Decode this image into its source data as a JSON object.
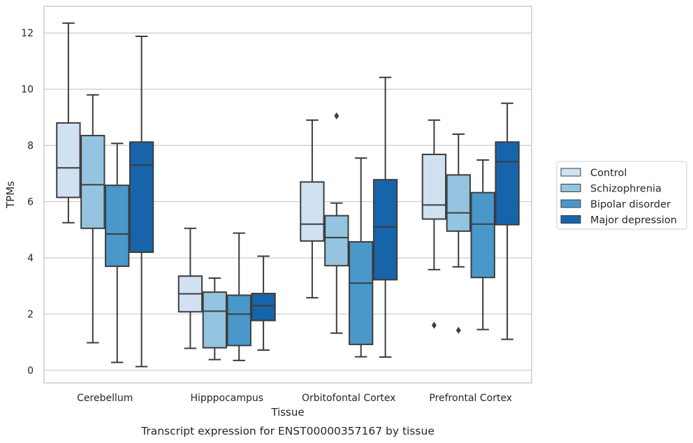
{
  "chart_data": {
    "type": "box",
    "caption": "Transcript expression for ENST00000357167 by tissue",
    "xlabel": "Tissue",
    "ylabel": "TPMs",
    "ylim": [
      -0.45,
      12.95
    ],
    "yticks": [
      0,
      2,
      4,
      6,
      8,
      10,
      12
    ],
    "grid": true,
    "legend": {
      "placement": "right",
      "entries": [
        "Control",
        "Schizophrenia",
        "Bipolar disorder",
        "Major depression"
      ]
    },
    "categories": [
      "Cerebellum",
      "Hipppocampus",
      "Orbitofontal Cortex",
      "Prefrontal Cortex"
    ],
    "series": [
      {
        "name": "Control",
        "color": "#d0e1f2",
        "boxes": [
          {
            "whislo": 5.25,
            "q1": 6.15,
            "med": 7.2,
            "q3": 8.8,
            "whishi": 12.35,
            "fliers": []
          },
          {
            "whislo": 0.78,
            "q1": 2.08,
            "med": 2.72,
            "q3": 3.35,
            "whishi": 5.05,
            "fliers": []
          },
          {
            "whislo": 2.58,
            "q1": 4.6,
            "med": 5.2,
            "q3": 6.7,
            "whishi": 8.9,
            "fliers": []
          },
          {
            "whislo": 3.58,
            "q1": 5.38,
            "med": 5.88,
            "q3": 7.68,
            "whishi": 8.9,
            "fliers": [
              1.6
            ]
          }
        ]
      },
      {
        "name": "Schizophrenia",
        "color": "#94c4df",
        "boxes": [
          {
            "whislo": 0.98,
            "q1": 5.05,
            "med": 6.6,
            "q3": 8.35,
            "whishi": 9.8,
            "fliers": []
          },
          {
            "whislo": 0.38,
            "q1": 0.8,
            "med": 2.1,
            "q3": 2.78,
            "whishi": 3.28,
            "fliers": []
          },
          {
            "whislo": 1.32,
            "q1": 3.72,
            "med": 4.72,
            "q3": 5.5,
            "whishi": 5.95,
            "fliers": [
              9.05
            ]
          },
          {
            "whislo": 3.68,
            "q1": 4.95,
            "med": 5.6,
            "q3": 6.95,
            "whishi": 8.4,
            "fliers": [
              1.42
            ]
          }
        ]
      },
      {
        "name": "Bipolar disorder",
        "color": "#4a98c9",
        "boxes": [
          {
            "whislo": 0.28,
            "q1": 3.7,
            "med": 4.85,
            "q3": 6.58,
            "whishi": 8.07,
            "fliers": []
          },
          {
            "whislo": 0.35,
            "q1": 0.88,
            "med": 2.0,
            "q3": 2.67,
            "whishi": 4.88,
            "fliers": []
          },
          {
            "whislo": 0.48,
            "q1": 0.92,
            "med": 3.1,
            "q3": 4.57,
            "whishi": 7.55,
            "fliers": []
          },
          {
            "whislo": 1.45,
            "q1": 3.3,
            "med": 5.2,
            "q3": 6.32,
            "whishi": 7.48,
            "fliers": []
          }
        ]
      },
      {
        "name": "Major depression",
        "color": "#1764ab",
        "boxes": [
          {
            "whislo": 0.13,
            "q1": 4.2,
            "med": 7.3,
            "q3": 8.12,
            "whishi": 11.88,
            "fliers": []
          },
          {
            "whislo": 0.72,
            "q1": 1.77,
            "med": 2.3,
            "q3": 2.73,
            "whishi": 4.06,
            "fliers": []
          },
          {
            "whislo": 0.47,
            "q1": 3.22,
            "med": 5.1,
            "q3": 6.78,
            "whishi": 10.42,
            "fliers": []
          },
          {
            "whislo": 1.1,
            "q1": 5.18,
            "med": 7.42,
            "q3": 8.12,
            "whishi": 9.5,
            "fliers": []
          }
        ]
      }
    ]
  }
}
